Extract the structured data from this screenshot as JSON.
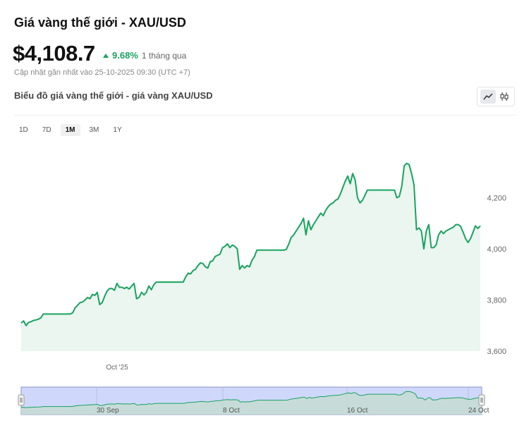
{
  "header": {
    "title": "Giá vàng thế giới - XAU/USD",
    "price": "$4,108.7",
    "change_pct": "9.68%",
    "change_period": "1 tháng qua",
    "updated": "Cập nhật gần nhất vào 25-10-2025 09:30 (UTC +7)",
    "chart_title": "Biểu đồ giá vàng thế giới - giá vàng XAU/USD"
  },
  "toolbar": {
    "chart_types": [
      {
        "icon": "line-chart-icon",
        "active": true
      },
      {
        "icon": "candlestick-icon",
        "active": false
      }
    ]
  },
  "ranges": [
    {
      "label": "1D",
      "active": false
    },
    {
      "label": "7D",
      "active": false
    },
    {
      "label": "1M",
      "active": true
    },
    {
      "label": "3M",
      "active": false
    },
    {
      "label": "1Y",
      "active": false
    }
  ],
  "colors": {
    "line": "#1aa260",
    "fill": "#eaf6ef",
    "positive": "#1aa260",
    "navigator_mask": "#cfd8fb",
    "navigator_border": "#8a94c8"
  },
  "chart_data": {
    "type": "area",
    "series": [
      {
        "values": [
          3710,
          3718,
          3700,
          3712,
          3715,
          3720,
          3722,
          3725,
          3730,
          3745,
          3745,
          3745,
          3745,
          3745,
          3745,
          3745,
          3745,
          3745,
          3745,
          3745,
          3745,
          3750,
          3770,
          3780,
          3790,
          3792,
          3800,
          3810,
          3805,
          3822,
          3818,
          3830,
          3782,
          3790,
          3815,
          3835,
          3845,
          3845,
          3838,
          3865,
          3850,
          3850,
          3845,
          3850,
          3843,
          3855,
          3865,
          3805,
          3810,
          3830,
          3820,
          3830,
          3855,
          3840,
          3860,
          3870,
          3870,
          3870,
          3870,
          3870,
          3870,
          3870,
          3870,
          3870,
          3870,
          3870,
          3870,
          3890,
          3905,
          3902,
          3915,
          3920,
          3935,
          3945,
          3943,
          3930,
          3925,
          3950,
          3953,
          3970,
          3975,
          3980,
          4005,
          4010,
          4020,
          4005,
          4015,
          4010,
          4000,
          3920,
          3935,
          3925,
          3935,
          3930,
          3955,
          3970,
          3995,
          3995,
          3995,
          3995,
          3995,
          3995,
          3995,
          3995,
          3995,
          3995,
          3995,
          3995,
          3998,
          4020,
          4045,
          4055,
          4070,
          4085,
          4100,
          4120,
          4055,
          4110,
          4075,
          4095,
          4110,
          4125,
          4140,
          4130,
          4150,
          4165,
          4175,
          4180,
          4190,
          4195,
          4215,
          4240,
          4265,
          4285,
          4255,
          4295,
          4270,
          4200,
          4180,
          4190,
          4210,
          4230,
          4230,
          4230,
          4230,
          4230,
          4230,
          4230,
          4230,
          4230,
          4230,
          4230,
          4230,
          4200,
          4205,
          4245,
          4325,
          4335,
          4330,
          4295,
          4250,
          4075,
          4082,
          4070,
          4000,
          4070,
          4095,
          4005,
          4005,
          4015,
          4055,
          4070,
          4060,
          4070,
          4075,
          4080,
          4085,
          4095,
          4095,
          4088,
          4065,
          4040,
          4025,
          4040,
          4065,
          4090,
          4080,
          4090
        ]
      }
    ],
    "x_tick_labels": [
      "Oct '25"
    ],
    "y_ticks": [
      3600,
      3800,
      4000,
      4200
    ],
    "y_tick_labels": [
      "3,600",
      "3,800",
      "4,000",
      "4,200"
    ],
    "ylim": [
      3600,
      4400
    ],
    "grid": false,
    "navigator": {
      "labels": [
        "30 Sep",
        "8 Oct",
        "16 Oct",
        "24 Oct"
      ]
    }
  }
}
